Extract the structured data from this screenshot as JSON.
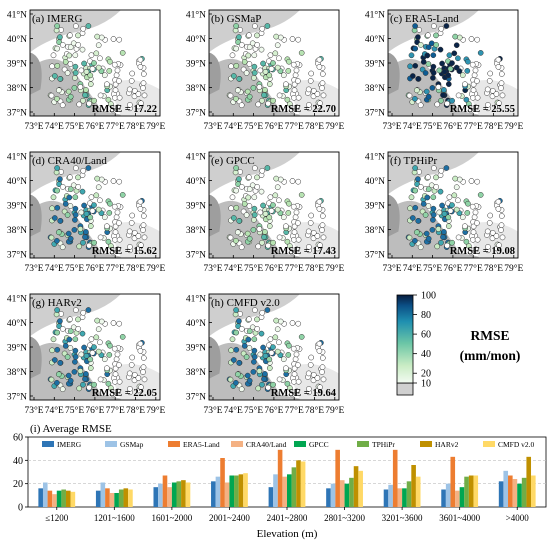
{
  "maps": [
    {
      "id": "a",
      "label": "(a) IMERG",
      "rmse": "RMSE = 17.22",
      "palette": "low"
    },
    {
      "id": "b",
      "label": "(b) GSMaP",
      "rmse": "RMSE = 22.70",
      "palette": "low"
    },
    {
      "id": "c",
      "label": "(c) ERA5-Land",
      "rmse": "RMSE = 25.55",
      "palette": "high"
    },
    {
      "id": "d",
      "label": "(d) CRA40/Land",
      "rmse": "RMSE = 15.62",
      "palette": "mid"
    },
    {
      "id": "e",
      "label": "(e) GPCC",
      "rmse": "RMSE = 17.43",
      "palette": "low"
    },
    {
      "id": "f",
      "label": "(f) TPHiPr",
      "rmse": "RMSE = 19.08",
      "palette": "mid"
    },
    {
      "id": "g",
      "label": "(g) HARv2",
      "rmse": "RMSE = 22.05",
      "palette": "mid"
    },
    {
      "id": "h",
      "label": "(h) CMFD v2.0",
      "rmse": "RMSE = 19.64",
      "palette": "mid"
    }
  ],
  "map_axes": {
    "lat_ticks": [
      "37°N",
      "38°N",
      "39°N",
      "40°N",
      "41°N"
    ],
    "lon_ticks": [
      "73°E",
      "74°E",
      "75°E",
      "76°E",
      "77°E",
      "78°E",
      "79°E"
    ]
  },
  "colorbar": {
    "ticks": [
      10,
      20,
      40,
      60,
      80,
      100
    ],
    "title_line1": "RMSE",
    "title_line2": "(mm/mon)"
  },
  "chart_data": {
    "type": "bar",
    "title": "(i) Average RMSE",
    "xlabel": "Elevation (m)",
    "ylabel": "",
    "ylim": [
      0,
      60
    ],
    "yticks": [
      0,
      20,
      40,
      60
    ],
    "categories": [
      "≤1200",
      "1201~1600",
      "1601~2000",
      "2001~2400",
      "2401~2800",
      "2801~3200",
      "3201~3600",
      "3601~4000",
      ">4000"
    ],
    "series": [
      {
        "name": "IMERG",
        "color": "#2e75b6",
        "values": [
          16,
          14,
          17,
          22,
          17,
          16,
          15,
          15,
          22
        ]
      },
      {
        "name": "GSMap",
        "color": "#9dc3e6",
        "values": [
          21,
          21,
          20,
          26,
          28,
          20,
          19,
          20,
          31
        ]
      },
      {
        "name": "ERA5-Land",
        "color": "#ed7d31",
        "values": [
          14,
          16,
          27,
          42,
          49,
          49,
          49,
          43,
          27
        ]
      },
      {
        "name": "CRA40/Land",
        "color": "#f4b183",
        "values": [
          11,
          12,
          17,
          21,
          26,
          23,
          16,
          14,
          24
        ]
      },
      {
        "name": "GPCC",
        "color": "#00a651",
        "values": [
          14,
          12,
          21,
          27,
          28,
          20,
          16,
          17,
          20
        ]
      },
      {
        "name": "TPHiPr",
        "color": "#70ad47",
        "values": [
          15,
          15,
          22,
          27,
          34,
          25,
          22,
          26,
          25
        ]
      },
      {
        "name": "HARv2",
        "color": "#bf9000",
        "values": [
          14,
          16,
          23,
          28,
          40,
          35,
          36,
          27,
          43
        ]
      },
      {
        "name": "CMFD v2.0",
        "color": "#ffd966",
        "values": [
          13,
          15,
          21,
          29,
          39,
          31,
          26,
          27,
          27
        ]
      }
    ]
  }
}
